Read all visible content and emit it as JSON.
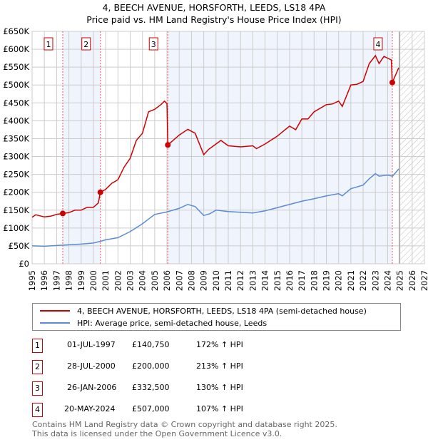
{
  "chart_data": {
    "type": "line",
    "title": "4, BEECH AVENUE, HORSFORTH, LEEDS, LS18 4PA",
    "subtitle": "Price paid vs. HM Land Registry's House Price Index (HPI)",
    "xlim": [
      1995,
      2027
    ],
    "ylim": [
      0,
      650000
    ],
    "yticks": [
      "£0",
      "£50K",
      "£100K",
      "£150K",
      "£200K",
      "£250K",
      "£300K",
      "£350K",
      "£400K",
      "£450K",
      "£500K",
      "£550K",
      "£600K",
      "£650K"
    ],
    "xticks": [
      "1995",
      "1996",
      "1997",
      "1998",
      "1999",
      "2000",
      "2001",
      "2002",
      "2003",
      "2004",
      "2005",
      "2006",
      "2007",
      "2008",
      "2009",
      "2010",
      "2011",
      "2012",
      "2013",
      "2014",
      "2015",
      "2016",
      "2017",
      "2018",
      "2019",
      "2020",
      "2021",
      "2022",
      "2023",
      "2024",
      "2025",
      "2026",
      "2027"
    ],
    "forecast_start": 2024.95,
    "series": [
      {
        "name": "4, BEECH AVENUE, HORSFORTH, LEEDS, LS18 4PA (semi-detached house)",
        "color": "#cc0000",
        "x": [
          1995,
          1995.3,
          1996,
          1996.5,
          1997,
          1997.5,
          1998,
          1998.5,
          1999,
          1999.5,
          2000,
          2000.4,
          2000.57,
          2001,
          2001.5,
          2002,
          2002.5,
          2003,
          2003.5,
          2004,
          2004.5,
          2005,
          2005.5,
          2005.8,
          2006.0,
          2006.07,
          2006.5,
          2007,
          2007.7,
          2008.3,
          2009,
          2009.4,
          2010,
          2010.4,
          2011,
          2012,
          2013,
          2013.3,
          2014,
          2015,
          2016,
          2016.5,
          2017,
          2017.5,
          2018,
          2019,
          2019.5,
          2020,
          2020.3,
          2021,
          2021.5,
          2022,
          2022.5,
          2023,
          2023.3,
          2023.7,
          2024,
          2024.3,
          2024.38,
          2024.9
        ],
        "y": [
          130,
          137,
          131,
          133,
          138,
          140.75,
          143,
          150,
          150,
          158,
          158,
          170,
          200,
          208,
          225,
          235,
          270,
          295,
          345,
          365,
          425,
          432,
          445,
          455,
          448,
          332.5,
          345,
          360,
          376,
          365,
          305,
          320,
          335,
          345,
          330,
          327,
          330,
          322,
          335,
          357,
          385,
          375,
          405,
          405,
          425,
          445,
          447,
          455,
          440,
          500,
          502,
          510,
          560,
          582,
          560,
          580,
          575,
          570,
          507,
          548
        ]
      },
      {
        "name": "HPI: Average price, semi-detached house, Leeds",
        "color": "#5b8bd0",
        "x": [
          1995,
          1996,
          1997,
          1997.5,
          1998,
          1999,
          2000,
          2000.6,
          2001,
          2002,
          2003,
          2004,
          2004.5,
          2005,
          2006,
          2007,
          2007.7,
          2008.3,
          2009,
          2009.5,
          2010,
          2011,
          2012,
          2013,
          2014,
          2015,
          2016,
          2017,
          2018,
          2019,
          2020,
          2020.3,
          2021,
          2022,
          2022.5,
          2023,
          2023.3,
          2024,
          2024.4,
          2024.9
        ],
        "y": [
          50,
          49,
          51,
          52,
          53,
          55,
          58,
          63,
          67,
          73,
          90,
          112,
          125,
          138,
          145,
          155,
          166,
          160,
          135,
          140,
          150,
          146,
          144,
          142,
          148,
          157,
          166,
          175,
          182,
          190,
          196,
          190,
          210,
          220,
          238,
          252,
          245,
          248,
          245,
          265
        ]
      }
    ],
    "sales": [
      {
        "id": "1",
        "x": 1997.5,
        "date": "01-JUL-1997",
        "price": 140750,
        "price_label": "£140,750",
        "hpi": "172% ↑ HPI"
      },
      {
        "id": "2",
        "x": 2000.57,
        "date": "28-JUL-2000",
        "price": 200000,
        "price_label": "£200,000",
        "hpi": "213% ↑ HPI"
      },
      {
        "id": "3",
        "x": 2006.07,
        "date": "26-JAN-2006",
        "price": 332500,
        "price_label": "£332,500",
        "hpi": "130% ↑ HPI"
      },
      {
        "id": "4",
        "x": 2024.38,
        "date": "20-MAY-2024",
        "price": 507000,
        "price_label": "£507,000",
        "hpi": "107% ↑ HPI"
      }
    ]
  },
  "legend": {
    "property": "4, BEECH AVENUE, HORSFORTH, LEEDS, LS18 4PA (semi-detached house)",
    "hpi": "HPI: Average price, semi-detached house, Leeds"
  },
  "footer": {
    "line1": "Contains HM Land Registry data © Crown copyright and database right 2025.",
    "line2": "This data is licensed under the Open Government Licence v3.0."
  }
}
